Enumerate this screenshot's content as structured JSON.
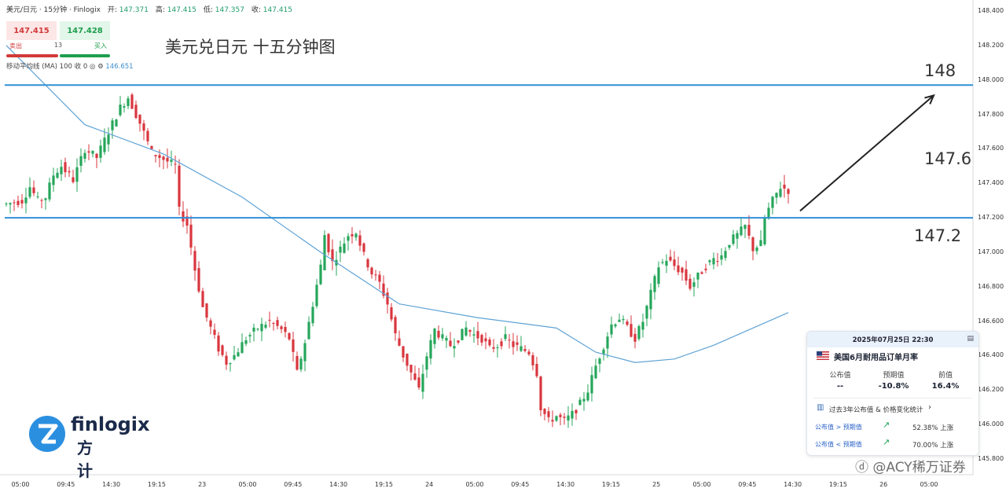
{
  "header": {
    "symbol": "美元/日元 · 15分钟 · Finlogix",
    "open_label": "开:",
    "open": "147.371",
    "high_label": "高:",
    "high": "147.415",
    "low_label": "低:",
    "low": "147.357",
    "close_label": "收:",
    "close": "147.415"
  },
  "trade": {
    "sell_price": "147.415",
    "buy_price": "147.428",
    "sell_label": "卖出",
    "buy_label": "买入",
    "spread": "13"
  },
  "indicator": {
    "name": "移动平均线 (MA)",
    "params": "100 收 0",
    "value": "146.651"
  },
  "annotations": {
    "title": "美元兑日元 十五分钟图",
    "level_148": "148",
    "level_1476": "147.6",
    "level_1472": "147.2"
  },
  "brand": {
    "word": "finlogix",
    "cn": "方计"
  },
  "watermark": "ⓓ @ACY稀万证券",
  "event_card": {
    "datetime": "2025年07月25日 22:30",
    "title": "美国6月耐用品订单月率",
    "col_actual": "公布值",
    "col_forecast": "预期值",
    "col_previous": "前值",
    "actual": "--",
    "forecast": "-10.8%",
    "previous": "16.4%",
    "stats_link": "过去3年公布值 & 价格变化统计",
    "row1_label": "公布值 > 预期值",
    "row1_value": "52.38% 上涨",
    "row2_label": "公布值 < 预期值",
    "row2_value": "70.00% 上涨"
  },
  "colors": {
    "up": "#26a65b",
    "down": "#d9363e",
    "ma": "#5fa3d6",
    "level_line": "#2f8fd6",
    "arrow": "#222222"
  },
  "chart_data": {
    "type": "candlestick",
    "title": "美元兑日元 十五分钟图",
    "ylim": [
      145.8,
      148.4
    ],
    "y_ticks": [
      "148.400",
      "148.200",
      "148.000",
      "147.800",
      "147.600",
      "147.400",
      "147.200",
      "147.000",
      "146.800",
      "146.600",
      "146.400",
      "146.200",
      "146.000",
      "145.800"
    ],
    "x_ticks": [
      "05:00",
      "09:45",
      "14:30",
      "19:15",
      "23",
      "05:00",
      "09:45",
      "14:30",
      "19:15",
      "24",
      "05:00",
      "09:45",
      "14:30",
      "19:15",
      "25",
      "05:00",
      "09:45",
      "14:30",
      "19:15",
      "26",
      "05:00"
    ],
    "horizontal_levels": [
      147.97,
      147.2
    ],
    "ma_period": 100,
    "price_path": [
      [
        0,
        147.28
      ],
      [
        4,
        147.3
      ],
      [
        6,
        147.38
      ],
      [
        8,
        147.3
      ],
      [
        10,
        147.32
      ],
      [
        12,
        147.45
      ],
      [
        14,
        147.5
      ],
      [
        17,
        147.42
      ],
      [
        20,
        147.6
      ],
      [
        23,
        147.55
      ],
      [
        26,
        147.7
      ],
      [
        29,
        147.84
      ],
      [
        31,
        147.9
      ],
      [
        34,
        147.75
      ],
      [
        37,
        147.58
      ],
      [
        40,
        147.54
      ],
      [
        43,
        147.5
      ],
      [
        44,
        147.24
      ],
      [
        46,
        147.16
      ],
      [
        48,
        146.9
      ],
      [
        50,
        146.68
      ],
      [
        52,
        146.56
      ],
      [
        54,
        146.44
      ],
      [
        56,
        146.36
      ],
      [
        58,
        146.4
      ],
      [
        61,
        146.5
      ],
      [
        64,
        146.56
      ],
      [
        67,
        146.6
      ],
      [
        70,
        146.55
      ],
      [
        72,
        146.5
      ],
      [
        74,
        146.3
      ],
      [
        76,
        146.48
      ],
      [
        78,
        146.7
      ],
      [
        80,
        146.92
      ],
      [
        81,
        147.1
      ],
      [
        83,
        146.94
      ],
      [
        85,
        147.02
      ],
      [
        87,
        147.1
      ],
      [
        89,
        147.12
      ],
      [
        91,
        146.98
      ],
      [
        93,
        146.88
      ],
      [
        95,
        146.82
      ],
      [
        97,
        146.7
      ],
      [
        99,
        146.52
      ],
      [
        101,
        146.4
      ],
      [
        103,
        146.3
      ],
      [
        105,
        146.2
      ],
      [
        107,
        146.4
      ],
      [
        109,
        146.55
      ],
      [
        111,
        146.5
      ],
      [
        113,
        146.46
      ],
      [
        115,
        146.5
      ],
      [
        117,
        146.56
      ],
      [
        119,
        146.52
      ],
      [
        121,
        146.5
      ],
      [
        123,
        146.44
      ],
      [
        125,
        146.46
      ],
      [
        127,
        146.5
      ],
      [
        129,
        146.46
      ],
      [
        131,
        146.44
      ],
      [
        133,
        146.42
      ],
      [
        135,
        146.3
      ],
      [
        136,
        146.1
      ],
      [
        138,
        146.02
      ],
      [
        140,
        146.05
      ],
      [
        142,
        146.02
      ],
      [
        144,
        146.06
      ],
      [
        146,
        146.12
      ],
      [
        148,
        146.2
      ],
      [
        150,
        146.34
      ],
      [
        152,
        146.46
      ],
      [
        154,
        146.58
      ],
      [
        156,
        146.62
      ],
      [
        158,
        146.56
      ],
      [
        160,
        146.5
      ],
      [
        162,
        146.6
      ],
      [
        164,
        146.76
      ],
      [
        166,
        146.92
      ],
      [
        168,
        146.96
      ],
      [
        170,
        146.92
      ],
      [
        172,
        146.88
      ],
      [
        174,
        146.8
      ],
      [
        176,
        146.86
      ],
      [
        178,
        146.92
      ],
      [
        180,
        146.96
      ],
      [
        182,
        146.98
      ],
      [
        184,
        147.06
      ],
      [
        186,
        147.1
      ],
      [
        188,
        147.15
      ],
      [
        190,
        147.02
      ],
      [
        192,
        147.05
      ],
      [
        193,
        147.2
      ],
      [
        195,
        147.3
      ],
      [
        197,
        147.38
      ],
      [
        199,
        147.36
      ]
    ],
    "ma_path": [
      [
        0,
        148.2
      ],
      [
        20,
        147.74
      ],
      [
        40,
        147.57
      ],
      [
        60,
        147.32
      ],
      [
        80,
        147.0
      ],
      [
        100,
        146.7
      ],
      [
        120,
        146.62
      ],
      [
        140,
        146.56
      ],
      [
        150,
        146.42
      ],
      [
        160,
        146.36
      ],
      [
        170,
        146.38
      ],
      [
        180,
        146.46
      ],
      [
        199,
        146.65
      ]
    ],
    "projection_arrow": {
      "from": [
        202,
        147.24
      ],
      "to": [
        236,
        147.91
      ]
    }
  }
}
